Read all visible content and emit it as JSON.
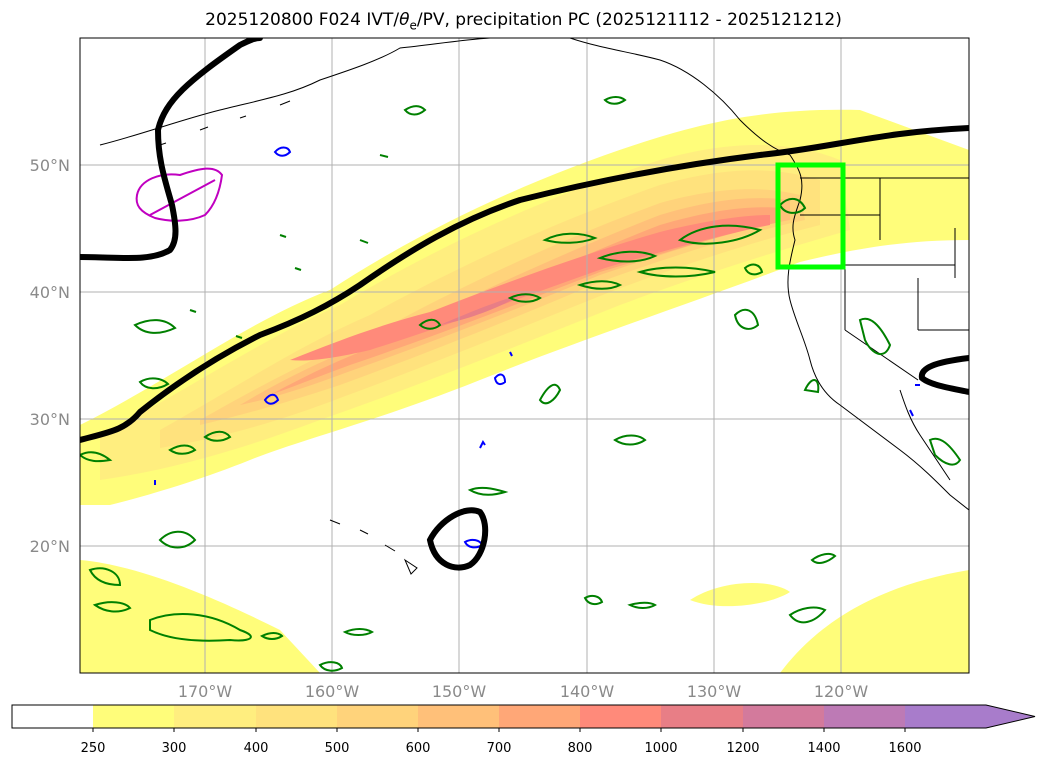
{
  "title": {
    "prefix": "2025120800 F024 IVT/",
    "theta_symbol": "θ",
    "theta_sub": "e",
    "suffix": "/PV, precipitation PC (2025121112 - 2025121212)"
  },
  "map": {
    "lon_range": [
      -180,
      -110
    ],
    "lat_range": [
      10,
      60
    ],
    "lon_ticks": [
      {
        "lon": -170,
        "label": "170°W"
      },
      {
        "lon": -160,
        "label": "160°W"
      },
      {
        "lon": -150,
        "label": "150°W"
      },
      {
        "lon": -140,
        "label": "140°W"
      },
      {
        "lon": -130,
        "label": "130°W"
      },
      {
        "lon": -120,
        "label": "120°W"
      }
    ],
    "lat_ticks": [
      {
        "lat": 20,
        "label": "20°N"
      },
      {
        "lat": 30,
        "label": "30°N"
      },
      {
        "lat": 40,
        "label": "40°N"
      },
      {
        "lat": 50,
        "label": "50°N"
      }
    ],
    "highlight_box": {
      "lon": [
        -125,
        -120
      ],
      "lat": [
        42,
        50
      ],
      "color": "#00ff00"
    }
  },
  "colorbar": {
    "levels": [
      "250",
      "300",
      "400",
      "500",
      "600",
      "700",
      "800",
      "1000",
      "1200",
      "1400",
      "1600"
    ],
    "colors": [
      "#ffffff",
      "#fffd7a",
      "#ffee7f",
      "#ffe27d",
      "#ffd37b",
      "#ffc079",
      "#ffa777",
      "#ff8a7a",
      "#e87e86",
      "#d37a9c",
      "#bd7ab5",
      "#a87ccb"
    ],
    "extend": "max"
  },
  "colors": {
    "ivt_line": "#000000",
    "precip_contour": "#008000",
    "pv_contour": "#0000ff",
    "magenta_contour": "#c000c0"
  }
}
